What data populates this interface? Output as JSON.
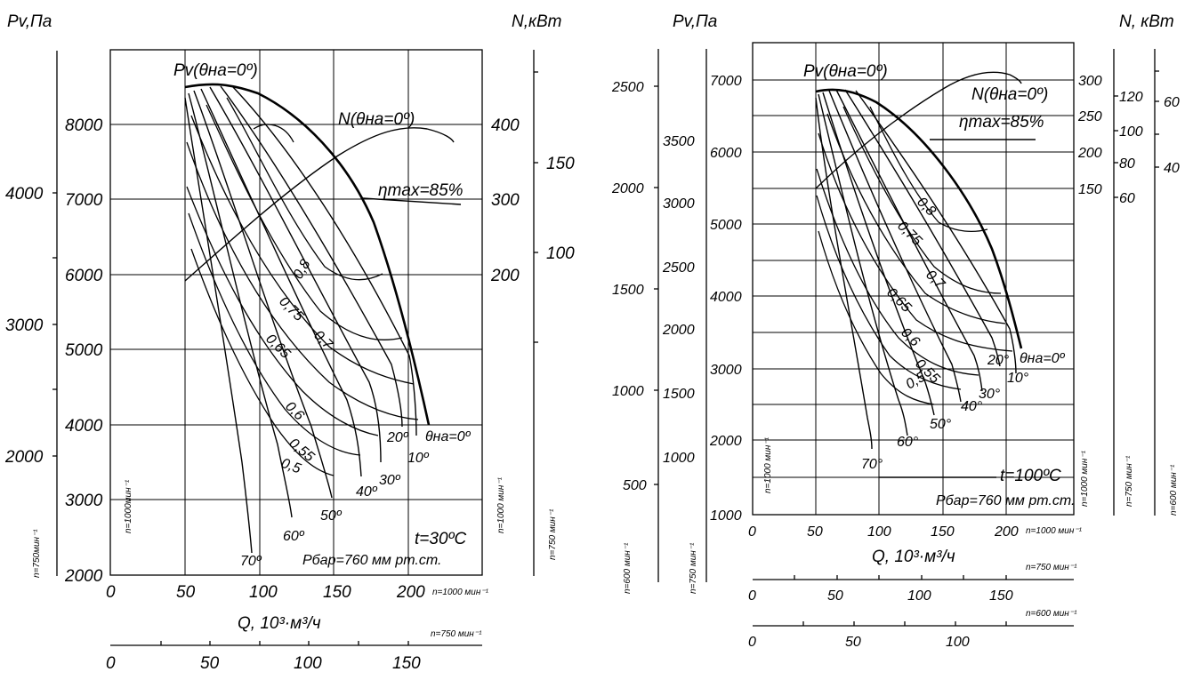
{
  "chart_data": [
    {
      "type": "line",
      "title": "",
      "conditions": {
        "temperature": "t=30ºC",
        "pressure": "Pбар=760 мм рт.ст."
      },
      "ylabel_left": "Pv,Па",
      "ylabel_right": "N,кВт",
      "peak_label": "Pv(θна=0º)",
      "power_label": "N(θна=0º)",
      "eff_max_label": "ηmax=85%",
      "xlabel": "Q,  10³·м³/ч",
      "axes": {
        "x_primary": {
          "ticks": [
            "0",
            "50",
            "100",
            "150",
            "200"
          ],
          "range": [
            0,
            220
          ]
        },
        "x_750": {
          "label": "n=750 мин⁻¹",
          "ticks": [
            "0",
            "50",
            "100",
            "150"
          ]
        },
        "x_1000_label": "n=1000 мин⁻¹",
        "pv_1000": {
          "label": "n=1000мин⁻¹",
          "ticks": [
            "2000",
            "3000",
            "4000",
            "5000",
            "6000",
            "7000",
            "8000"
          ],
          "range": [
            2000,
            8900
          ]
        },
        "pv_750": {
          "label": "n=750мин⁻¹",
          "ticks": [
            "2000",
            "3000",
            "4000"
          ]
        },
        "n_1000": {
          "label": "n=1000 мин⁻¹",
          "ticks": [
            "200",
            "300",
            "400"
          ]
        },
        "n_750": {
          "label": "n=750 мин⁻¹",
          "ticks": [
            "100",
            "150"
          ]
        }
      },
      "guide_vane_labels": [
        "θна=0º",
        "10º",
        "20º",
        "30º",
        "40º",
        "50º",
        "60º",
        "70º"
      ],
      "efficiency_labels": [
        "0,8",
        "0,75",
        "0,7",
        "0,65",
        "0,6",
        "0,55",
        "0,5"
      ],
      "series": [
        {
          "name": "Pv(θна=0º)",
          "x": [
            50,
            60,
            75,
            100,
            125,
            150,
            175,
            200,
            213
          ],
          "y": [
            8500,
            8550,
            8450,
            8150,
            7700,
            7050,
            6200,
            5100,
            4000
          ]
        },
        {
          "name": "N(θна=0º)",
          "x": [
            50,
            80,
            110,
            140,
            170,
            195,
            210
          ],
          "y": [
            200,
            262,
            320,
            366,
            392,
            392,
            386
          ]
        }
      ]
    },
    {
      "type": "line",
      "title": "",
      "conditions": {
        "temperature": "t=100ºC",
        "pressure": "Pбар=760 мм рт.ст."
      },
      "ylabel_left": "Pv,Па",
      "ylabel_right": "N, кВт",
      "peak_label": "Pv(θна=0º)",
      "power_label": "N(θна=0º)",
      "eff_max_label": "ηmax=85%",
      "xlabel": "Q,  10³·м³/ч",
      "axes": {
        "x_primary": {
          "ticks": [
            "0",
            "50",
            "100",
            "150",
            "200"
          ],
          "range": [
            0,
            220
          ]
        },
        "x_1000_label": "n=1000 мин⁻¹",
        "x_750": {
          "label": "n=750 мин⁻¹",
          "ticks": [
            "0",
            "50",
            "100",
            "150"
          ]
        },
        "x_600": {
          "label": "n=600 мин⁻¹",
          "ticks": [
            "0",
            "50",
            "100"
          ]
        },
        "pv_1000": {
          "label": "n=1000 мин⁻¹",
          "ticks": [
            "1000",
            "2000",
            "3000",
            "4000",
            "5000",
            "6000",
            "7000"
          ],
          "range": [
            1000,
            7500
          ]
        },
        "pv_750": {
          "label": "n=750 мин⁻¹",
          "ticks": [
            "1000",
            "1500",
            "2000",
            "2500",
            "3000",
            "3500"
          ]
        },
        "pv_600": {
          "label": "n=600 мин⁻¹",
          "ticks": [
            "500",
            "1000",
            "1500",
            "2000",
            "2500"
          ]
        },
        "n_1000": {
          "label": "n=1000 мин⁻¹",
          "ticks": [
            "150",
            "200",
            "250",
            "300"
          ]
        },
        "n_750": {
          "label": "n=750 мин⁻¹",
          "ticks": [
            "60",
            "80",
            "100",
            "120"
          ]
        },
        "n_600": {
          "label": "n=600 мин⁻¹",
          "ticks": [
            "40",
            "60"
          ]
        }
      },
      "guide_vane_labels": [
        "θна=0º",
        "10°",
        "20°",
        "30°",
        "40°",
        "50°",
        "60°",
        "70°"
      ],
      "efficiency_labels": [
        "0,8",
        "0,75",
        "0,7",
        "0,65",
        "0,6",
        "0,55",
        "0,5"
      ],
      "series": [
        {
          "name": "Pv(θна=0º)",
          "x": [
            50,
            60,
            75,
            100,
            125,
            150,
            175,
            200,
            213
          ],
          "y": [
            6850,
            6900,
            6800,
            6500,
            6100,
            5500,
            4800,
            3950,
            3300
          ]
        },
        {
          "name": "N(θна=0º)",
          "x": [
            50,
            80,
            110,
            140,
            165,
            190,
            210
          ],
          "y": [
            150,
            200,
            245,
            278,
            297,
            300,
            298
          ]
        }
      ]
    }
  ]
}
